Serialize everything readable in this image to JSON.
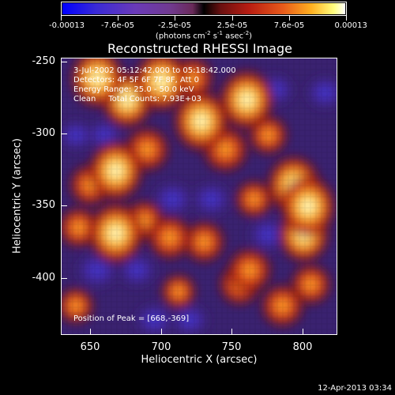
{
  "colorbar": {
    "tick_labels": [
      "-0.00013",
      "-7.6e-05",
      "-2.5e-05",
      "2.5e-05",
      "7.6e-05",
      "0.00013"
    ],
    "units": "(photons cm",
    "units_exp1": "-2",
    "units_mid": " s",
    "units_exp2": "-1",
    "units_mid2": " asec",
    "units_exp3": "-2",
    "units_end": ")"
  },
  "title": "Reconstructed RHESSI Image",
  "overlay": {
    "line1": "3-Jul-2002 05:12:42.000 to 05:18:42.000",
    "line2": "Detectors: 4F 5F 6F 7F 8F, Att 0",
    "line3": "Energy Range: 25.0 - 50.0 keV",
    "line4": "Clean     Total Counts: 7.93E+03",
    "peak": "Position of Peak = [668,-369]"
  },
  "axes": {
    "x_title": "Heliocentric X (arcsec)",
    "y_title": "Heliocentric Y (arcsec)",
    "x_ticks": [
      "650",
      "700",
      "750",
      "800"
    ],
    "y_ticks": [
      "-250",
      "-300",
      "-350",
      "-400"
    ]
  },
  "timestamp": "12-Apr-2013 03:34",
  "colors": {
    "background": "#000000",
    "text": "#ffffff"
  },
  "image_data": {
    "blobs": [
      {
        "x": 655,
        "y": -260,
        "v": 0.9
      },
      {
        "x": 676,
        "y": -275,
        "v": 0.85
      },
      {
        "x": 700,
        "y": -262,
        "v": 0.95
      },
      {
        "x": 728,
        "y": -290,
        "v": 0.98
      },
      {
        "x": 760,
        "y": -275,
        "v": 0.95
      },
      {
        "x": 745,
        "y": -310,
        "v": 0.75
      },
      {
        "x": 668,
        "y": -325,
        "v": 0.95
      },
      {
        "x": 690,
        "y": -310,
        "v": 0.7
      },
      {
        "x": 650,
        "y": -335,
        "v": 0.6
      },
      {
        "x": 642,
        "y": -365,
        "v": 0.55
      },
      {
        "x": 668,
        "y": -369,
        "v": 1.0
      },
      {
        "x": 688,
        "y": -360,
        "v": 0.55
      },
      {
        "x": 706,
        "y": -372,
        "v": 0.7
      },
      {
        "x": 730,
        "y": -375,
        "v": 0.6
      },
      {
        "x": 762,
        "y": -395,
        "v": 0.7
      },
      {
        "x": 755,
        "y": -405,
        "v": 0.6
      },
      {
        "x": 785,
        "y": -420,
        "v": 0.65
      },
      {
        "x": 793,
        "y": -335,
        "v": 0.9
      },
      {
        "x": 803,
        "y": -350,
        "v": 0.98
      },
      {
        "x": 800,
        "y": -370,
        "v": 0.8
      },
      {
        "x": 805,
        "y": -405,
        "v": 0.55
      },
      {
        "x": 775,
        "y": -300,
        "v": 0.5
      },
      {
        "x": 765,
        "y": -345,
        "v": 0.45
      },
      {
        "x": 722,
        "y": -260,
        "v": 0.6
      },
      {
        "x": 640,
        "y": -420,
        "v": 0.4
      },
      {
        "x": 712,
        "y": -410,
        "v": 0.35
      },
      {
        "x": 683,
        "y": -395,
        "v": -0.5
      },
      {
        "x": 708,
        "y": -345,
        "v": -0.6
      },
      {
        "x": 655,
        "y": -395,
        "v": -0.7
      },
      {
        "x": 735,
        "y": -345,
        "v": -0.55
      },
      {
        "x": 775,
        "y": -370,
        "v": -0.6
      },
      {
        "x": 780,
        "y": -268,
        "v": -0.45
      },
      {
        "x": 660,
        "y": -300,
        "v": -0.4
      },
      {
        "x": 815,
        "y": -270,
        "v": -0.5
      },
      {
        "x": 720,
        "y": -430,
        "v": -0.45
      },
      {
        "x": 695,
        "y": -430,
        "v": -0.5
      },
      {
        "x": 640,
        "y": -300,
        "v": -0.35
      }
    ],
    "x_range": [
      630,
      823
    ],
    "y_range": [
      -246,
      -440
    ]
  }
}
